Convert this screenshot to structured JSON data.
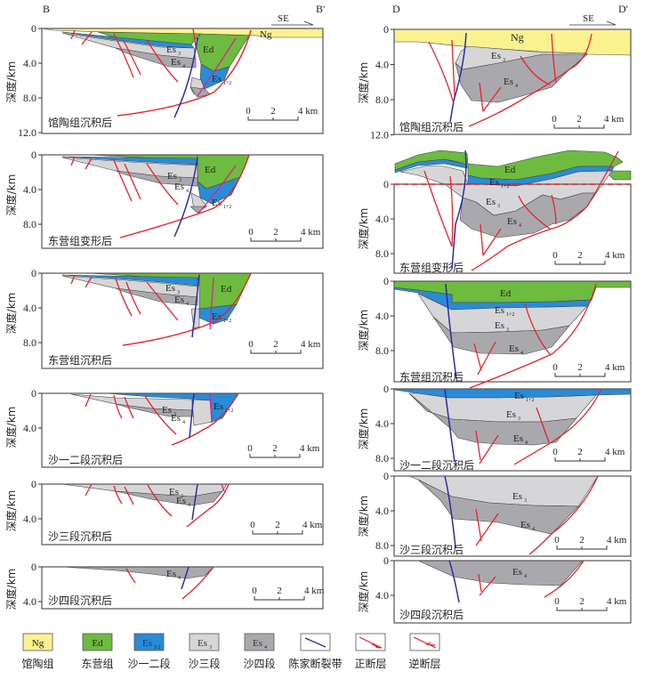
{
  "colors": {
    "Ng": "#fbf28f",
    "Ed": "#6dbb3f",
    "Es12": "#2a8bd6",
    "Es3": "#d6d6d8",
    "Es4": "#a9a9ad",
    "chenjia_fault": "#2b2ea0",
    "normal_fault": "#e8232b",
    "thrust_fault": "#e8232b",
    "pink_fault": "#e0208f",
    "frame": "#555555"
  },
  "left_column": {
    "start_label": "B",
    "end_label": "B'",
    "direction": "SE",
    "ylabel": "深度/km",
    "panels": [
      {
        "stage": "馆陶组沉积后",
        "ticks": [
          "0",
          "4.0",
          "8.0",
          "12.0"
        ],
        "units": [
          "Ng",
          "Ed",
          "Es3",
          "Es4",
          "Es1+2"
        ]
      },
      {
        "stage": "东营组变形后",
        "ticks": [
          "0",
          "4.0",
          "8.0"
        ],
        "units": [
          "Ed",
          "Es3",
          "Es4",
          "Es1+2"
        ]
      },
      {
        "stage": "东营组沉积后",
        "ticks": [
          "0",
          "4.0",
          "8.0"
        ],
        "units": [
          "Ed",
          "Es3",
          "Es4",
          "Es1+2"
        ]
      },
      {
        "stage": "沙一二段沉积后",
        "ticks": [
          "0",
          "4.0"
        ],
        "units": [
          "Es3",
          "Es4",
          "Es1+2"
        ]
      },
      {
        "stage": "沙三段沉积后",
        "ticks": [
          "0",
          "4.0"
        ],
        "units": [
          "Es3",
          "Es4"
        ]
      },
      {
        "stage": "沙四段沉积后",
        "ticks": [
          "0",
          "4.0"
        ],
        "units": [
          "Es4"
        ]
      }
    ]
  },
  "right_column": {
    "start_label": "D",
    "end_label": "D'",
    "direction": "SE",
    "ylabel": "深度/km",
    "panels": [
      {
        "stage": "馆陶组沉积后",
        "ticks": [
          "0",
          "4.0",
          "8.0",
          "12.0"
        ],
        "units": [
          "Ng",
          "Es3",
          "Es4"
        ]
      },
      {
        "stage": "东营组变形后",
        "ticks": [
          "0",
          "4.0",
          "8.0"
        ],
        "units": [
          "Ed",
          "Es1+2",
          "Es3",
          "Es4"
        ]
      },
      {
        "stage": "东营组沉积后",
        "ticks": [
          "0",
          "4.0",
          "8.0"
        ],
        "units": [
          "Ed",
          "Es1+2",
          "Es3",
          "Es4"
        ]
      },
      {
        "stage": "沙一二段沉积后",
        "ticks": [
          "0",
          "4.0",
          "8.0"
        ],
        "units": [
          "Es1+2",
          "Es3",
          "Es4"
        ]
      },
      {
        "stage": "沙三段沉积后",
        "ticks": [
          "0",
          "4.0",
          "8.0"
        ],
        "units": [
          "Es3",
          "Es4"
        ]
      },
      {
        "stage": "沙四段沉积后",
        "ticks": [
          "0",
          "4.0"
        ],
        "units": [
          "Es4"
        ]
      }
    ]
  },
  "scale_bar": {
    "labels": [
      "0",
      "2",
      "4 km"
    ]
  },
  "unit_labels": {
    "Ng": "Ng",
    "Ed": "Ed",
    "Es": "Es",
    "sub12": "1+2",
    "sub12_legend": "1/2",
    "sub3": "3",
    "sub4": "4"
  },
  "legend": [
    {
      "key": "Ng",
      "swatch_text": "Ng",
      "label": "馆陶组"
    },
    {
      "key": "Ed",
      "swatch_text": "Ed",
      "label": "东营组"
    },
    {
      "key": "Es12",
      "swatch_text": "Es1/2",
      "label": "沙一二段"
    },
    {
      "key": "Es3",
      "swatch_text": "Es3",
      "label": "沙三段"
    },
    {
      "key": "Es4",
      "swatch_text": "Es4",
      "label": "沙四段"
    },
    {
      "key": "chenjia",
      "swatch_text": "",
      "label": "陈家断裂带"
    },
    {
      "key": "normal",
      "swatch_text": "",
      "label": "正断层"
    },
    {
      "key": "thrust",
      "swatch_text": "",
      "label": "逆断层"
    }
  ]
}
